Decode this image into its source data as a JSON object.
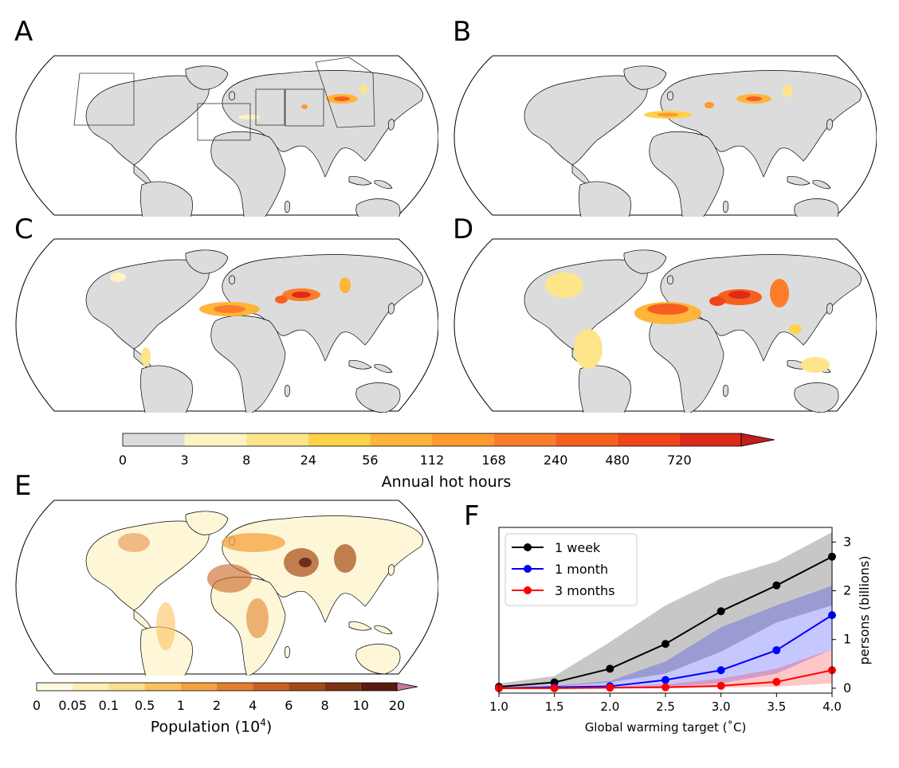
{
  "panels": {
    "a": "A",
    "b": "B",
    "c": "C",
    "d": "D",
    "e": "E",
    "f": "F"
  },
  "colorbar_hot": {
    "title": "Annual hot hours",
    "ticks": [
      "0",
      "3",
      "8",
      "24",
      "56",
      "112",
      "168",
      "240",
      "480",
      "720"
    ],
    "colors": [
      "#dcdcdc",
      "#fff3c4",
      "#ffe58a",
      "#ffd24a",
      "#ffb43a",
      "#fd9a30",
      "#fb7d2b",
      "#f6601f",
      "#ef4619",
      "#dc2b18"
    ],
    "extend_color": "#c0201a"
  },
  "colorbar_pop": {
    "title": "Population (10",
    "title_sup": "4",
    "title_end": ")",
    "ticks": [
      "0",
      "0.05",
      "0.1",
      "0.5",
      "1",
      "2",
      "4",
      "6",
      "8",
      "10",
      "20"
    ],
    "colors": [
      "#fffbe3",
      "#ffefb4",
      "#fde08c",
      "#fbc25c",
      "#f5a13e",
      "#e4802c",
      "#c9621f",
      "#a54a16",
      "#7c3412",
      "#5a1a10"
    ],
    "extend_color": "#c27ba0"
  },
  "colors": {
    "land": "#dcdcdc",
    "week": "#000000",
    "month": "#0000ff",
    "three_months": "#ff0000"
  },
  "chart_data": {
    "type": "line",
    "xlabel": "Global warming target ($^\\circ$C)",
    "ylabel": "persons (billions)",
    "xlim": [
      1.0,
      4.0
    ],
    "ylim": [
      -0.1,
      3.3
    ],
    "x_ticks": [
      "1.0",
      "1.5",
      "2.0",
      "2.5",
      "3.0",
      "3.5",
      "4.0"
    ],
    "y_ticks": [
      "0",
      "1",
      "2",
      "3"
    ],
    "legend": "top-left",
    "x": [
      1.0,
      1.5,
      2.0,
      2.5,
      3.0,
      3.5,
      4.0
    ],
    "series": [
      {
        "name": "1 week",
        "color": "#000000",
        "values": [
          0.03,
          0.12,
          0.4,
          0.91,
          1.58,
          2.11,
          2.7
        ],
        "lower": [
          0.0,
          0.03,
          0.12,
          0.3,
          0.75,
          1.35,
          1.7
        ],
        "upper": [
          0.1,
          0.25,
          0.95,
          1.7,
          2.25,
          2.6,
          3.2
        ]
      },
      {
        "name": "1 month",
        "color": "#0000ff",
        "values": [
          0.0,
          0.02,
          0.04,
          0.17,
          0.37,
          0.78,
          1.5
        ],
        "lower": [
          0.0,
          0.0,
          0.0,
          0.03,
          0.1,
          0.3,
          0.8
        ],
        "upper": [
          0.02,
          0.05,
          0.15,
          0.55,
          1.25,
          1.7,
          2.1
        ]
      },
      {
        "name": "3 months",
        "color": "#ff0000",
        "values": [
          0.0,
          0.0,
          0.01,
          0.02,
          0.05,
          0.13,
          0.37
        ],
        "lower": [
          0.0,
          0.0,
          0.0,
          0.0,
          0.01,
          0.03,
          0.1
        ],
        "upper": [
          0.0,
          0.01,
          0.03,
          0.08,
          0.2,
          0.4,
          0.8
        ]
      }
    ]
  }
}
